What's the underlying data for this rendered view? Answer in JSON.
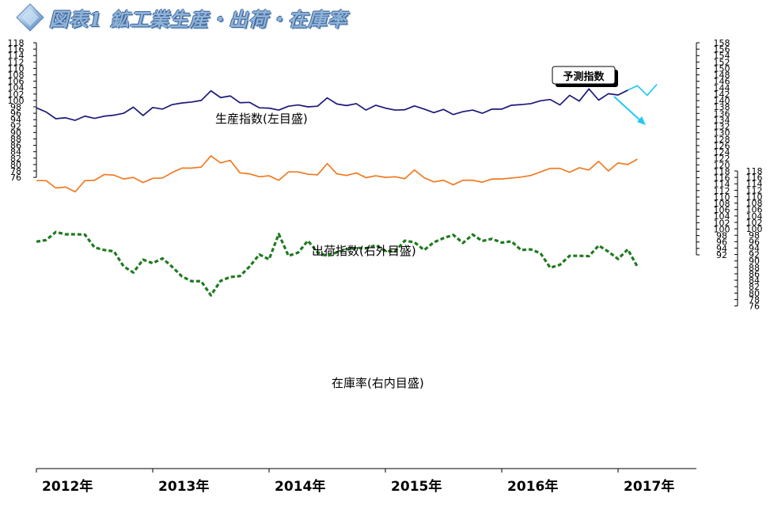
{
  "title": "図表1 鉱工業生産・出荷・在庫率",
  "chart_data": {
    "type": "line",
    "x_labels": [
      "2012年",
      "2013年",
      "2014年",
      "2015年",
      "2016年",
      "2017年"
    ],
    "x_unit": "month index from Jan 2012",
    "left_axis": {
      "min": 76,
      "max": 118,
      "step": 2,
      "ticks_labeled_from": 76
    },
    "right_outer_axis": {
      "min": 92,
      "max": 158,
      "step": 2
    },
    "right_inner_axis": {
      "min": 76,
      "max": 118,
      "step": 2
    },
    "series": [
      {
        "name": "生産指数(左目盛)",
        "axis": "left",
        "color": "#1a1a7a",
        "style": "solid",
        "x_start": 0,
        "values": [
          97.7,
          96.4,
          94.3,
          94.6,
          93.8,
          95.1,
          94.4,
          95.1,
          95.4,
          96.0,
          97.9,
          95.3,
          97.8,
          97.3,
          98.7,
          99.2,
          99.5,
          100.0,
          103.0,
          100.9,
          101.4,
          99.3,
          99.4,
          97.7,
          97.6,
          97.0,
          98.2,
          98.6,
          98.0,
          98.2,
          100.8,
          98.9,
          98.4,
          99.0,
          97.0,
          98.5,
          97.6,
          97.0,
          97.1,
          98.3,
          97.3,
          96.2,
          97.2,
          95.6,
          96.5,
          97.0,
          96.0,
          97.3,
          97.3,
          98.5,
          98.7,
          99.0,
          99.9,
          100.3,
          98.6,
          101.6,
          99.8,
          103.6,
          100.1,
          102.1,
          101.7,
          103.2
        ]
      },
      {
        "name": "予測指数",
        "axis": "left",
        "color": "#22c8f0",
        "style": "solid",
        "x_start": 61,
        "values": [
          103.2,
          104.6,
          101.6,
          105.0
        ]
      },
      {
        "name": "出荷指数(右外目盛)",
        "axis": "right_outer",
        "color": "#f07a22",
        "style": "solid",
        "x_start": 0,
        "values": [
          115.1,
          115.1,
          112.8,
          113.1,
          111.6,
          115.1,
          115.2,
          117.0,
          116.8,
          115.6,
          116.1,
          114.5,
          115.8,
          115.9,
          117.6,
          119.0,
          119.0,
          119.3,
          122.8,
          120.6,
          121.4,
          117.5,
          117.2,
          116.3,
          116.6,
          115.2,
          117.8,
          117.8,
          117.1,
          116.9,
          120.4,
          117.2,
          116.7,
          117.5,
          116.0,
          116.6,
          116.1,
          116.3,
          115.7,
          118.4,
          116.0,
          114.7,
          115.2,
          113.8,
          115.2,
          115.2,
          114.6,
          115.6,
          115.6,
          115.9,
          116.2,
          116.7,
          117.8,
          118.9,
          118.9,
          117.7,
          119.1,
          118.4,
          121.1,
          118.1,
          120.6,
          120.1,
          121.8
        ]
      },
      {
        "name": "在庫率(右内目盛)",
        "axis": "right_inner",
        "color": "#1f7a1f",
        "style": "dashed",
        "x_start": 0,
        "values": [
          96.0,
          96.5,
          99.0,
          98.3,
          98.3,
          98.2,
          94.2,
          93.4,
          93.0,
          88.3,
          86.4,
          90.4,
          89.3,
          90.8,
          88.2,
          85.2,
          83.7,
          83.7,
          79.3,
          83.8,
          85.0,
          85.3,
          88.3,
          92.0,
          90.5,
          98.4,
          91.6,
          92.6,
          96.3,
          92.7,
          91.5,
          92.7,
          93.6,
          94.1,
          93.9,
          94.9,
          93.1,
          93.0,
          96.3,
          95.8,
          93.4,
          95.8,
          97.1,
          98.1,
          95.6,
          98.2,
          96.2,
          96.9,
          95.7,
          96.1,
          93.4,
          93.6,
          92.4,
          87.9,
          88.8,
          91.6,
          91.6,
          91.5,
          94.8,
          92.9,
          90.6,
          93.6,
          88.2
        ]
      }
    ],
    "annotations": [
      {
        "text": "生産指数(左目盛)"
      },
      {
        "text": "出荷指数(右外目盛)"
      },
      {
        "text": "在庫率(右内目盛)"
      },
      {
        "text": "予測指数",
        "boxed": true
      }
    ],
    "grid": false,
    "legend": "none"
  }
}
